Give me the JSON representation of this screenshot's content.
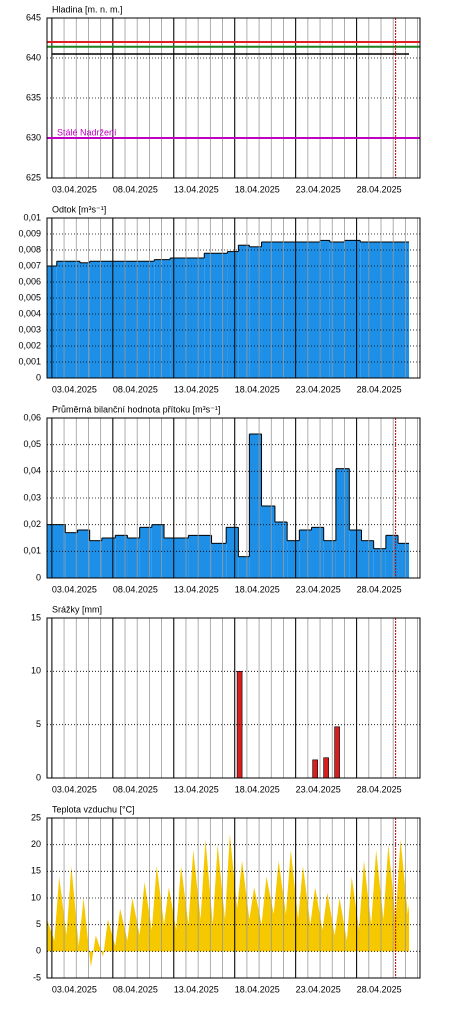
{
  "chart_data": [
    {
      "type": "line",
      "title": "Hladina [m. n. m.]",
      "xlim": [
        2.6,
        33.2
      ],
      "xticks": [
        {
          "value": 3,
          "label": "03.04.2025"
        },
        {
          "value": 8,
          "label": "08.04.2025"
        },
        {
          "value": 13,
          "label": "13.04.2025"
        },
        {
          "value": 18,
          "label": "18.04.2025"
        },
        {
          "value": 23,
          "label": "23.04.2025"
        },
        {
          "value": 28,
          "label": "28.04.2025"
        }
      ],
      "ylim": [
        625,
        645
      ],
      "yticks": [
        625,
        630,
        635,
        640,
        645
      ],
      "grid": true,
      "now_marker": 31.2,
      "reference_lines": [
        {
          "value": 642,
          "color": "#e02020"
        },
        {
          "value": 641.4,
          "color": "#208020"
        },
        {
          "value": 630,
          "color": "#c000c0",
          "label": "Stálé Nadržení"
        }
      ],
      "x": [
        3.0,
        32.3
      ],
      "values": [
        640.5,
        640.5
      ],
      "color": "#000000"
    },
    {
      "type": "step_area",
      "title": "Odtok [m³s⁻¹]",
      "xlim": [
        2.6,
        33.2
      ],
      "xticks": [
        {
          "value": 3,
          "label": "03.04.2025"
        },
        {
          "value": 8,
          "label": "08.04.2025"
        },
        {
          "value": 13,
          "label": "13.04.2025"
        },
        {
          "value": 18,
          "label": "18.04.2025"
        },
        {
          "value": 23,
          "label": "23.04.2025"
        },
        {
          "value": 28,
          "label": "28.04.2025"
        }
      ],
      "ylim": [
        0,
        0.01
      ],
      "yticks": [
        0,
        {
          "value": 0.001,
          "label": "0,001"
        },
        {
          "value": 0.002,
          "label": "0,002"
        },
        {
          "value": 0.003,
          "label": "0,003"
        },
        {
          "value": 0.004,
          "label": "0,004"
        },
        {
          "value": 0.005,
          "label": "0,005"
        },
        {
          "value": 0.006,
          "label": "0,006"
        },
        {
          "value": 0.007,
          "label": "0,007"
        },
        {
          "value": 0.008,
          "label": "0,008"
        },
        {
          "value": 0.009,
          "label": "0,009"
        },
        {
          "value": 0.01,
          "label": "0,01"
        }
      ],
      "grid": true,
      "x": [
        2.6,
        3.4,
        5.3,
        6.1,
        11.4,
        12.7,
        15.5,
        17.4,
        18.3,
        19.2,
        20.2,
        25.0,
        25.8,
        27.0,
        28.3,
        32.3
      ],
      "values": [
        0.007,
        0.0073,
        0.0072,
        0.0073,
        0.0074,
        0.0075,
        0.0078,
        0.0079,
        0.0083,
        0.0082,
        0.0085,
        0.0086,
        0.0085,
        0.0086,
        0.0085,
        0.0085
      ],
      "color": "#1e8fe6"
    },
    {
      "type": "step_area",
      "title": "Průměrná bilanční hodnota přítoku   [m³s⁻¹]",
      "xlim": [
        2.6,
        33.2
      ],
      "xticks": [
        {
          "value": 3,
          "label": "03.04.2025"
        },
        {
          "value": 8,
          "label": "08.04.2025"
        },
        {
          "value": 13,
          "label": "13.04.2025"
        },
        {
          "value": 18,
          "label": "18.04.2025"
        },
        {
          "value": 23,
          "label": "23.04.2025"
        },
        {
          "value": 28,
          "label": "28.04.2025"
        }
      ],
      "ylim": [
        0,
        0.06
      ],
      "yticks": [
        0,
        {
          "value": 0.01,
          "label": "0,01"
        },
        {
          "value": 0.02,
          "label": "0,02"
        },
        {
          "value": 0.03,
          "label": "0,03"
        },
        {
          "value": 0.04,
          "label": "0,04"
        },
        {
          "value": 0.05,
          "label": "0,05"
        },
        {
          "value": 0.06,
          "label": "0,06"
        }
      ],
      "grid": true,
      "now_marker": 31.2,
      "x": [
        2.6,
        4.1,
        5.1,
        6.1,
        7.1,
        8.2,
        9.2,
        10.2,
        11.2,
        12.2,
        14.2,
        16.1,
        17.3,
        18.3,
        19.2,
        20.2,
        21.3,
        22.3,
        23.3,
        24.3,
        25.3,
        26.3,
        27.4,
        28.4,
        29.4,
        30.4,
        31.4,
        32.3
      ],
      "values": [
        0.02,
        0.017,
        0.018,
        0.014,
        0.015,
        0.016,
        0.015,
        0.019,
        0.02,
        0.015,
        0.016,
        0.013,
        0.019,
        0.008,
        0.054,
        0.027,
        0.021,
        0.014,
        0.018,
        0.019,
        0.014,
        0.041,
        0.018,
        0.014,
        0.011,
        0.016,
        0.013,
        0.013
      ],
      "color": "#1e8fe6"
    },
    {
      "type": "bar",
      "title": "Srážky [mm]",
      "xlim": [
        2.6,
        33.2
      ],
      "xticks": [
        {
          "value": 3,
          "label": "03.04.2025"
        },
        {
          "value": 8,
          "label": "08.04.2025"
        },
        {
          "value": 13,
          "label": "13.04.2025"
        },
        {
          "value": 18,
          "label": "18.04.2025"
        },
        {
          "value": 23,
          "label": "23.04.2025"
        },
        {
          "value": 28,
          "label": "28.04.2025"
        }
      ],
      "ylim": [
        0,
        15
      ],
      "yticks": [
        0,
        5,
        10,
        15
      ],
      "grid": true,
      "now_marker": 31.2,
      "x": [
        18.4,
        24.6,
        25.5,
        26.4
      ],
      "values": [
        10,
        1.7,
        1.9,
        4.8
      ],
      "color": "#d42020"
    },
    {
      "type": "area",
      "title": "Teplota vzduchu [°C]",
      "xlim": [
        2.6,
        33.2
      ],
      "xticks": [
        {
          "value": 3,
          "label": "03.04.2025"
        },
        {
          "value": 8,
          "label": "08.04.2025"
        },
        {
          "value": 13,
          "label": "13.04.2025"
        },
        {
          "value": 18,
          "label": "18.04.2025"
        },
        {
          "value": 23,
          "label": "23.04.2025"
        },
        {
          "value": 28,
          "label": "28.04.2025"
        }
      ],
      "ylim": [
        -5,
        25
      ],
      "yticks": [
        -5,
        0,
        5,
        10,
        15,
        20,
        25
      ],
      "grid": true,
      "now_marker": 31.2,
      "x": [
        2.6,
        3.2,
        3.6,
        4.2,
        4.6,
        5.2,
        5.6,
        6.2,
        6.6,
        7.2,
        7.6,
        8.2,
        8.6,
        9.2,
        9.6,
        10.2,
        10.6,
        11.2,
        11.6,
        12.2,
        12.6,
        13.2,
        13.6,
        14.2,
        14.6,
        15.2,
        15.6,
        16.2,
        16.6,
        17.2,
        17.6,
        18.2,
        18.6,
        19.2,
        19.6,
        20.2,
        20.6,
        21.2,
        21.6,
        22.2,
        22.6,
        23.2,
        23.6,
        24.2,
        24.6,
        25.2,
        25.6,
        26.2,
        26.6,
        27.2,
        27.6,
        28.2,
        28.6,
        29.2,
        29.6,
        30.2,
        30.6,
        31.2,
        31.6,
        32.2,
        32.3
      ],
      "values": [
        6,
        2,
        14,
        3,
        16,
        1,
        10,
        -3,
        3,
        -1,
        6,
        1,
        8,
        2,
        10,
        3,
        13,
        4,
        16,
        5,
        12,
        4,
        16,
        5,
        19,
        6,
        21,
        5,
        20,
        6,
        22,
        8,
        17,
        6,
        12,
        5,
        14,
        7,
        17,
        7,
        19,
        6,
        16,
        5,
        12,
        4,
        11,
        3,
        10,
        2,
        14,
        4,
        17,
        5,
        19,
        6,
        20,
        6,
        21,
        7,
        9
      ],
      "color": "#f5c800"
    }
  ]
}
